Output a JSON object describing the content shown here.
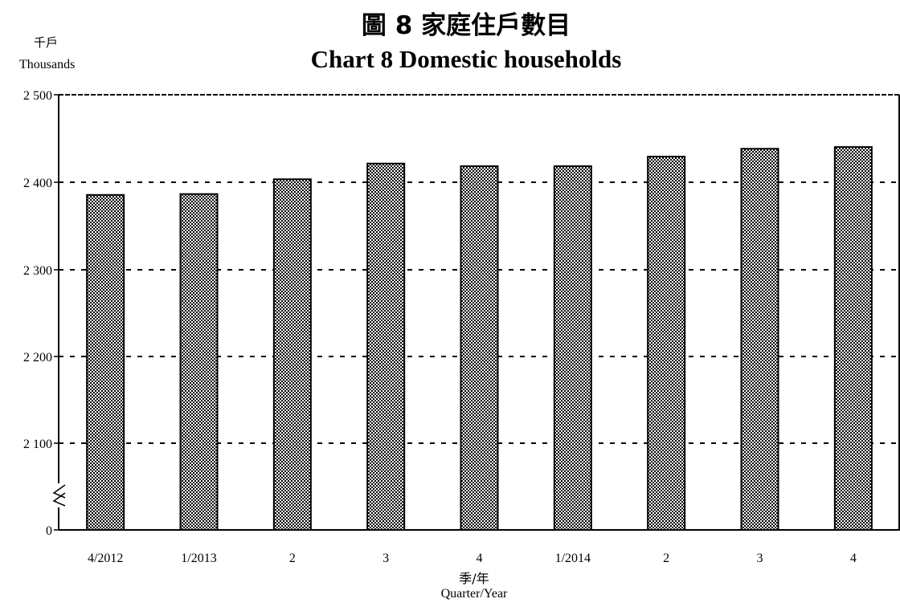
{
  "title_zh": "圖 8 家庭住戶數目",
  "title_en": "Chart 8 Domestic households",
  "unit_zh": "千戶",
  "unit_en": "Thousands",
  "xlabel_zh": "季/年",
  "xlabel_en": "Quarter/Year",
  "chart_data": {
    "type": "bar",
    "title": "Chart 8 Domestic households",
    "ylabel": "Thousands",
    "xlabel": "Quarter/Year",
    "categories": [
      "4/2012",
      "1/2013",
      "2",
      "3",
      "4",
      "1/2014",
      "2",
      "3",
      "4"
    ],
    "values": [
      2385,
      2386,
      2403,
      2421,
      2418,
      2418,
      2429,
      2438,
      2440
    ],
    "yticks": [
      0,
      2100,
      2200,
      2300,
      2400,
      2500
    ],
    "ytick_labels": [
      "0",
      "2 100",
      "2 200",
      "2 300",
      "2 400",
      "2 500"
    ],
    "ylim": [
      2050,
      2500
    ],
    "axis_break": true,
    "grid": true,
    "bar_fill": "#7a7a7a",
    "bar_pattern": "checkered"
  }
}
